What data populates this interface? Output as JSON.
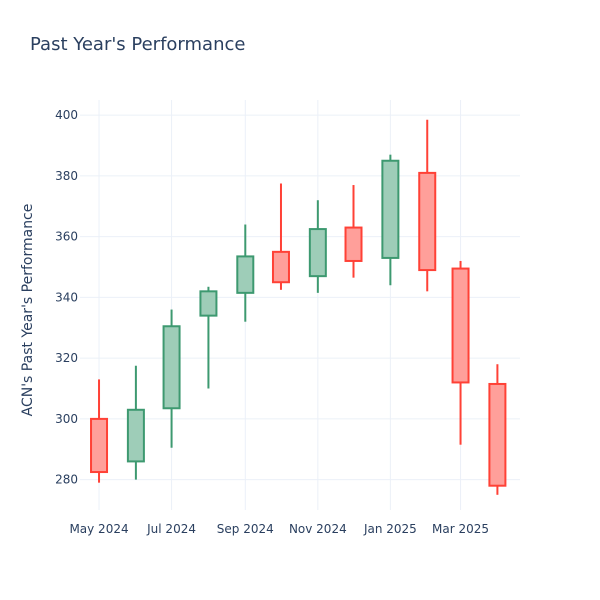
{
  "chart_data": {
    "type": "candlestick",
    "title": "Past Year's Performance",
    "ylabel": "ACN's Past Year's Performance",
    "xlabel": "",
    "ylim": [
      270,
      405
    ],
    "yticks": [
      280,
      300,
      320,
      340,
      360,
      380,
      400
    ],
    "xrange": [
      "2024-04-15",
      "2025-04-20"
    ],
    "xticks": [
      {
        "date": "2024-05-01",
        "label": "May 2024"
      },
      {
        "date": "2024-07-01",
        "label": "Jul 2024"
      },
      {
        "date": "2024-09-01",
        "label": "Sep 2024"
      },
      {
        "date": "2024-11-01",
        "label": "Nov 2024"
      },
      {
        "date": "2025-01-01",
        "label": "Jan 2025"
      },
      {
        "date": "2025-03-01",
        "label": "Mar 2025"
      }
    ],
    "grid": true,
    "colors": {
      "increasing_line": "#3d9970",
      "increasing_fill": "#9ecdb8",
      "decreasing_line": "#ff4136",
      "decreasing_fill": "#ff9f9a"
    },
    "candles": [
      {
        "date": "2024-05-01",
        "open": 300.0,
        "high": 313.0,
        "low": 279.0,
        "close": 282.5
      },
      {
        "date": "2024-06-01",
        "open": 286.0,
        "high": 317.5,
        "low": 280.0,
        "close": 303.0
      },
      {
        "date": "2024-07-01",
        "open": 303.5,
        "high": 336.0,
        "low": 290.5,
        "close": 330.5
      },
      {
        "date": "2024-08-01",
        "open": 334.0,
        "high": 343.5,
        "low": 310.0,
        "close": 342.0
      },
      {
        "date": "2024-09-01",
        "open": 341.5,
        "high": 364.0,
        "low": 332.0,
        "close": 353.5
      },
      {
        "date": "2024-10-01",
        "open": 355.0,
        "high": 377.5,
        "low": 342.5,
        "close": 345.0
      },
      {
        "date": "2024-11-01",
        "open": 347.0,
        "high": 372.0,
        "low": 341.5,
        "close": 362.5
      },
      {
        "date": "2024-12-01",
        "open": 363.0,
        "high": 377.0,
        "low": 346.5,
        "close": 352.0
      },
      {
        "date": "2025-01-01",
        "open": 353.0,
        "high": 387.0,
        "low": 344.0,
        "close": 385.0
      },
      {
        "date": "2025-02-01",
        "open": 381.0,
        "high": 398.5,
        "low": 342.0,
        "close": 349.0
      },
      {
        "date": "2025-03-01",
        "open": 349.5,
        "high": 352.0,
        "low": 291.5,
        "close": 312.0
      },
      {
        "date": "2025-04-01",
        "open": 311.5,
        "high": 318.0,
        "low": 275.0,
        "close": 278.0
      }
    ]
  }
}
